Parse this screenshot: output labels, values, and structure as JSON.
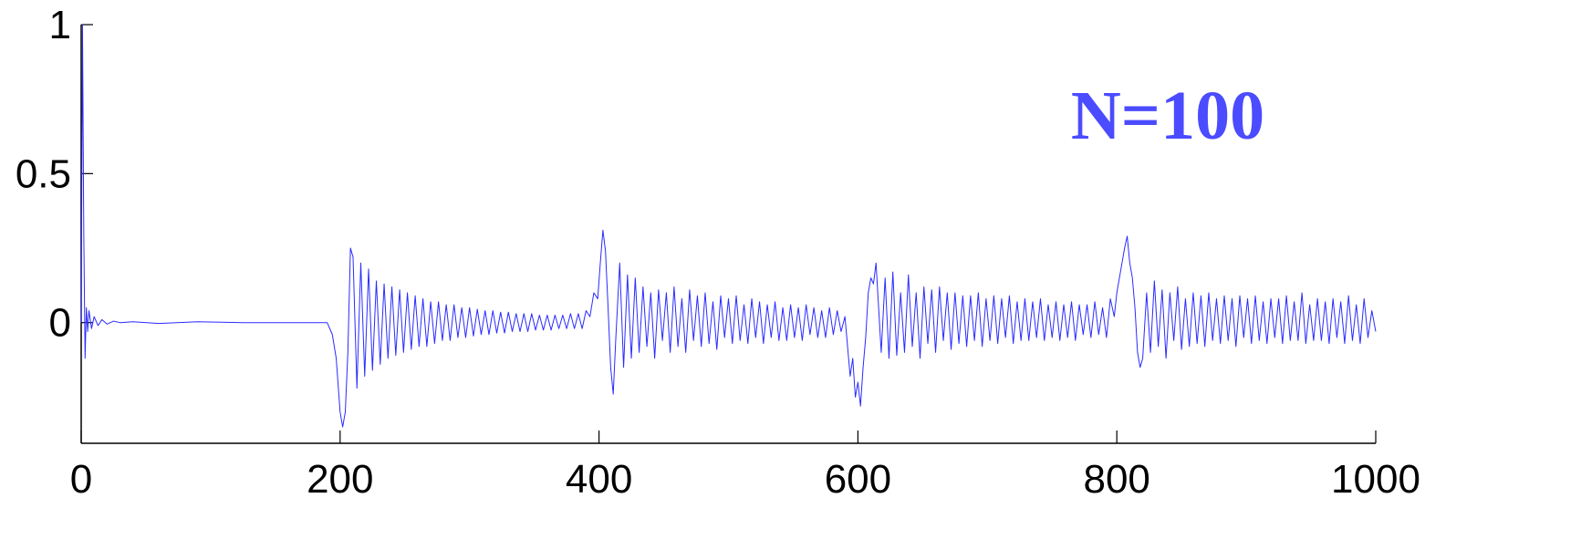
{
  "chart_data": {
    "type": "line",
    "annotation": "N=100",
    "annotation_color": "#4b4bff",
    "color": "#2b2bff",
    "xlim": [
      0,
      1000
    ],
    "xticks": [
      0,
      200,
      400,
      600,
      800,
      1000
    ],
    "ylim": [
      -0.405,
      1
    ],
    "yticks": [
      0,
      0.5,
      1
    ],
    "x": [
      0,
      1,
      2,
      3,
      4,
      5,
      6,
      8,
      10,
      13,
      16,
      20,
      25,
      30,
      40,
      60,
      90,
      125,
      190,
      194,
      197,
      200,
      202,
      204,
      206,
      208,
      210,
      213,
      216,
      219,
      222,
      225,
      228,
      231,
      234,
      237,
      240,
      243,
      246,
      249,
      252,
      255,
      258,
      261,
      264,
      267,
      270,
      273,
      276,
      279,
      282,
      285,
      288,
      291,
      294,
      297,
      300,
      303,
      306,
      309,
      312,
      315,
      318,
      321,
      324,
      327,
      330,
      333,
      336,
      339,
      342,
      345,
      348,
      351,
      354,
      357,
      360,
      363,
      366,
      369,
      372,
      375,
      378,
      381,
      384,
      387,
      390,
      393,
      396,
      399,
      401,
      403,
      405,
      407,
      409,
      411,
      413,
      416,
      419,
      422,
      425,
      428,
      431,
      434,
      437,
      440,
      443,
      446,
      449,
      452,
      455,
      458,
      461,
      464,
      467,
      470,
      473,
      476,
      479,
      482,
      485,
      488,
      491,
      494,
      497,
      500,
      503,
      506,
      509,
      512,
      515,
      518,
      521,
      524,
      527,
      530,
      533,
      536,
      539,
      542,
      545,
      548,
      551,
      554,
      557,
      560,
      563,
      566,
      569,
      572,
      575,
      578,
      581,
      584,
      587,
      590,
      592,
      594,
      596,
      598,
      600,
      602,
      604,
      606,
      608,
      610,
      612,
      614,
      616,
      618,
      621,
      624,
      627,
      630,
      633,
      636,
      639,
      642,
      645,
      648,
      651,
      654,
      657,
      660,
      663,
      666,
      669,
      672,
      675,
      678,
      681,
      684,
      687,
      690,
      693,
      696,
      699,
      702,
      705,
      708,
      711,
      714,
      717,
      720,
      723,
      726,
      729,
      732,
      735,
      738,
      741,
      744,
      747,
      750,
      753,
      756,
      759,
      762,
      765,
      768,
      771,
      774,
      777,
      780,
      783,
      786,
      789,
      792,
      795,
      798,
      800,
      802,
      804,
      806,
      808,
      810,
      812,
      814,
      816,
      818,
      820,
      823,
      826,
      829,
      832,
      835,
      838,
      841,
      844,
      847,
      850,
      853,
      856,
      859,
      862,
      865,
      868,
      871,
      874,
      877,
      880,
      883,
      886,
      889,
      892,
      895,
      898,
      901,
      904,
      907,
      910,
      913,
      916,
      919,
      922,
      925,
      928,
      931,
      934,
      937,
      940,
      943,
      946,
      949,
      952,
      955,
      958,
      961,
      964,
      967,
      970,
      973,
      976,
      979,
      982,
      985,
      988,
      991,
      994,
      997,
      1000
    ],
    "values": [
      0,
      1,
      0.3,
      -0.12,
      0.05,
      -0.03,
      0.04,
      -0.02,
      0.02,
      -0.01,
      0.01,
      -0.005,
      0.005,
      0,
      0.003,
      -0.003,
      0.003,
      0,
      0,
      -0.04,
      -0.12,
      -0.3,
      -0.35,
      -0.3,
      -0.1,
      0.25,
      0.22,
      -0.22,
      0.2,
      -0.18,
      0.18,
      -0.16,
      0.14,
      -0.14,
      0.13,
      -0.12,
      0.12,
      -0.11,
      0.11,
      -0.1,
      0.1,
      -0.09,
      0.09,
      -0.08,
      0.08,
      -0.08,
      0.07,
      -0.07,
      0.07,
      -0.06,
      0.06,
      -0.06,
      0.06,
      -0.05,
      0.05,
      -0.05,
      0.05,
      -0.045,
      0.045,
      -0.04,
      0.04,
      -0.04,
      0.04,
      -0.035,
      0.035,
      -0.035,
      0.035,
      -0.03,
      0.03,
      -0.03,
      0.03,
      -0.03,
      0.03,
      -0.025,
      0.025,
      -0.025,
      0.025,
      -0.025,
      0.025,
      -0.02,
      0.025,
      -0.02,
      0.03,
      -0.02,
      0.03,
      -0.02,
      0.04,
      0.02,
      0.1,
      0.08,
      0.2,
      0.31,
      0.24,
      0.05,
      -0.15,
      -0.24,
      -0.05,
      0.2,
      -0.15,
      0.16,
      -0.12,
      0.15,
      -0.1,
      0.12,
      -0.08,
      0.1,
      -0.12,
      0.11,
      -0.06,
      0.1,
      -0.1,
      0.12,
      -0.08,
      0.08,
      -0.1,
      0.11,
      -0.06,
      0.09,
      -0.08,
      0.1,
      -0.07,
      0.07,
      -0.09,
      0.09,
      -0.05,
      0.08,
      -0.07,
      0.09,
      -0.06,
      0.06,
      -0.07,
      0.08,
      -0.05,
      0.07,
      -0.07,
      0.06,
      -0.05,
      0.07,
      -0.06,
      0.05,
      -0.06,
      0.06,
      -0.05,
      0.05,
      -0.06,
      0.06,
      -0.04,
      0.05,
      -0.05,
      0.04,
      -0.05,
      0.05,
      -0.04,
      0.04,
      -0.03,
      0.02,
      -0.08,
      -0.18,
      -0.12,
      -0.25,
      -0.2,
      -0.28,
      -0.15,
      -0.05,
      0.1,
      0.15,
      0.13,
      0.2,
      0.05,
      -0.1,
      0.15,
      -0.12,
      0.17,
      -0.11,
      0.1,
      -0.1,
      0.16,
      -0.08,
      0.1,
      -0.12,
      0.12,
      -0.07,
      0.11,
      -0.1,
      0.12,
      -0.06,
      0.1,
      -0.09,
      0.1,
      -0.07,
      0.09,
      -0.08,
      0.09,
      -0.06,
      0.1,
      -0.08,
      0.08,
      -0.06,
      0.09,
      -0.07,
      0.08,
      -0.05,
      0.09,
      -0.07,
      0.07,
      -0.06,
      0.08,
      -0.06,
      0.07,
      -0.05,
      0.08,
      -0.06,
      0.06,
      -0.05,
      0.07,
      -0.06,
      0.06,
      -0.05,
      0.07,
      -0.06,
      0.06,
      -0.04,
      0.06,
      -0.05,
      0.07,
      -0.04,
      0.05,
      -0.05,
      0.08,
      0.02,
      0.1,
      0.15,
      0.2,
      0.25,
      0.29,
      0.2,
      0.15,
      0.05,
      -0.1,
      -0.15,
      -0.12,
      0.1,
      -0.1,
      0.14,
      -0.08,
      0.11,
      -0.12,
      0.1,
      -0.06,
      0.12,
      -0.09,
      0.08,
      -0.08,
      0.1,
      -0.07,
      0.09,
      -0.08,
      0.1,
      -0.06,
      0.08,
      -0.07,
      0.09,
      -0.06,
      0.08,
      -0.08,
      0.09,
      -0.05,
      0.08,
      -0.07,
      0.09,
      -0.06,
      0.07,
      -0.07,
      0.08,
      -0.05,
      0.08,
      -0.07,
      0.09,
      -0.06,
      0.07,
      -0.06,
      0.1,
      -0.07,
      0.06,
      -0.06,
      0.08,
      -0.06,
      0.07,
      -0.07,
      0.08,
      -0.05,
      0.07,
      -0.07,
      0.09,
      -0.06,
      0.06,
      -0.07,
      0.08,
      -0.05,
      0.04,
      -0.03
    ]
  }
}
